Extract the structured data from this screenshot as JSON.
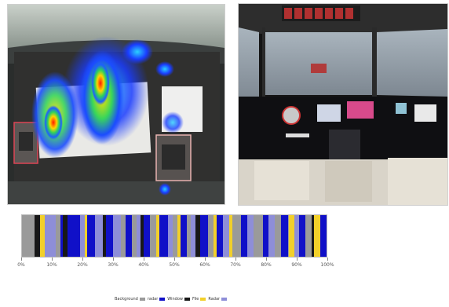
{
  "legend": {
    "items": [
      {
        "label": "Background",
        "color": "#9a9a9a"
      },
      {
        "label": "radar",
        "color": "#1010c8"
      },
      {
        "label": "Window",
        "color": "#181818"
      },
      {
        "label": "File",
        "color": "#f2d02a"
      },
      {
        "label": "Radar",
        "color": "#8e8ed8"
      }
    ]
  },
  "axis": {
    "ticks": [
      "0%",
      "10%",
      "20%",
      "30%",
      "40%",
      "50%",
      "60%",
      "70%",
      "80%",
      "90%",
      "100%"
    ]
  },
  "colors": {
    "gray": "#9a9a9a",
    "blue": "#1010c8",
    "dark": "#181818",
    "yellow": "#f2d02a",
    "lavender": "#8e8ed8"
  },
  "timeline_segments": [
    {
      "start": 0,
      "end": 0.04,
      "color": "gray"
    },
    {
      "start": 0.04,
      "end": 0.06,
      "color": "dark"
    },
    {
      "start": 0.06,
      "end": 0.075,
      "color": "yellow"
    },
    {
      "start": 0.075,
      "end": 0.11,
      "color": "lavender"
    },
    {
      "start": 0.11,
      "end": 0.125,
      "color": "gray"
    },
    {
      "start": 0.125,
      "end": 0.135,
      "color": "blue"
    },
    {
      "start": 0.135,
      "end": 0.15,
      "color": "dark"
    },
    {
      "start": 0.15,
      "end": 0.19,
      "color": "blue"
    },
    {
      "start": 0.19,
      "end": 0.205,
      "color": "lavender"
    },
    {
      "start": 0.205,
      "end": 0.215,
      "color": "yellow"
    },
    {
      "start": 0.215,
      "end": 0.24,
      "color": "blue"
    },
    {
      "start": 0.24,
      "end": 0.265,
      "color": "lavender"
    },
    {
      "start": 0.265,
      "end": 0.275,
      "color": "dark"
    },
    {
      "start": 0.275,
      "end": 0.3,
      "color": "blue"
    },
    {
      "start": 0.3,
      "end": 0.325,
      "color": "lavender"
    },
    {
      "start": 0.325,
      "end": 0.34,
      "color": "gray"
    },
    {
      "start": 0.34,
      "end": 0.36,
      "color": "blue"
    },
    {
      "start": 0.36,
      "end": 0.375,
      "color": "gray"
    },
    {
      "start": 0.375,
      "end": 0.39,
      "color": "lavender"
    },
    {
      "start": 0.39,
      "end": 0.4,
      "color": "dark"
    },
    {
      "start": 0.4,
      "end": 0.42,
      "color": "blue"
    },
    {
      "start": 0.42,
      "end": 0.44,
      "color": "gray"
    },
    {
      "start": 0.44,
      "end": 0.45,
      "color": "yellow"
    },
    {
      "start": 0.45,
      "end": 0.48,
      "color": "blue"
    },
    {
      "start": 0.48,
      "end": 0.495,
      "color": "lavender"
    },
    {
      "start": 0.495,
      "end": 0.51,
      "color": "gray"
    },
    {
      "start": 0.51,
      "end": 0.52,
      "color": "yellow"
    },
    {
      "start": 0.52,
      "end": 0.54,
      "color": "blue"
    },
    {
      "start": 0.54,
      "end": 0.555,
      "color": "gray"
    },
    {
      "start": 0.555,
      "end": 0.57,
      "color": "lavender"
    },
    {
      "start": 0.57,
      "end": 0.585,
      "color": "dark"
    },
    {
      "start": 0.585,
      "end": 0.61,
      "color": "blue"
    },
    {
      "start": 0.61,
      "end": 0.63,
      "color": "gray"
    },
    {
      "start": 0.63,
      "end": 0.64,
      "color": "yellow"
    },
    {
      "start": 0.64,
      "end": 0.66,
      "color": "blue"
    },
    {
      "start": 0.66,
      "end": 0.68,
      "color": "lavender"
    },
    {
      "start": 0.68,
      "end": 0.69,
      "color": "yellow"
    },
    {
      "start": 0.69,
      "end": 0.72,
      "color": "gray"
    },
    {
      "start": 0.72,
      "end": 0.74,
      "color": "blue"
    },
    {
      "start": 0.74,
      "end": 0.76,
      "color": "lavender"
    },
    {
      "start": 0.76,
      "end": 0.79,
      "color": "gray"
    },
    {
      "start": 0.79,
      "end": 0.81,
      "color": "blue"
    },
    {
      "start": 0.81,
      "end": 0.83,
      "color": "lavender"
    },
    {
      "start": 0.83,
      "end": 0.85,
      "color": "gray"
    },
    {
      "start": 0.85,
      "end": 0.875,
      "color": "blue"
    },
    {
      "start": 0.875,
      "end": 0.895,
      "color": "yellow"
    },
    {
      "start": 0.895,
      "end": 0.91,
      "color": "lavender"
    },
    {
      "start": 0.91,
      "end": 0.93,
      "color": "blue"
    },
    {
      "start": 0.93,
      "end": 0.95,
      "color": "gray"
    },
    {
      "start": 0.95,
      "end": 0.96,
      "color": "dark"
    },
    {
      "start": 0.96,
      "end": 0.98,
      "color": "yellow"
    },
    {
      "start": 0.98,
      "end": 1.0,
      "color": "blue"
    }
  ]
}
